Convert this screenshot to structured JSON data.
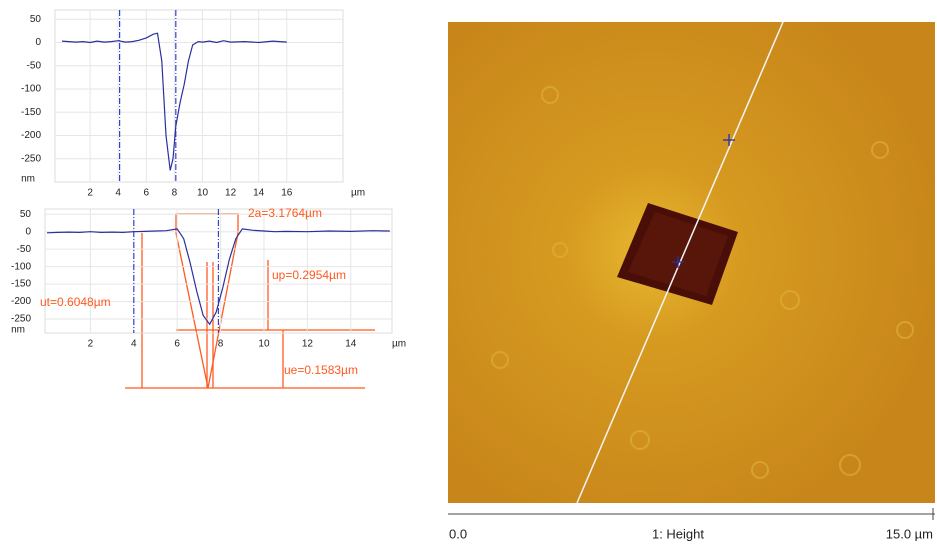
{
  "chart_data": [
    {
      "type": "line",
      "x_unit": "µm",
      "y_unit": "nm",
      "xlim": [
        0,
        20
      ],
      "ylim": [
        -300,
        70
      ],
      "xticks": [
        2,
        4,
        6,
        8,
        10,
        12,
        14,
        16
      ],
      "yticks": [
        50,
        0,
        -50,
        -100,
        -150,
        -200,
        -250
      ],
      "grid": true,
      "cursors": [
        4.1,
        8.1
      ],
      "cursor_color": "#3344cc",
      "series": [
        {
          "color": "#2b2f9e",
          "x": [
            0,
            0.5,
            1,
            1.5,
            2,
            2.5,
            3,
            3.5,
            4,
            4.5,
            5,
            5.5,
            6,
            6.5,
            6.8,
            7.1,
            7.4,
            7.7,
            7.9,
            8.1,
            8.4,
            8.7,
            9.0,
            9.3,
            9.7,
            10,
            10.5,
            11,
            11.5,
            12,
            13,
            14,
            15,
            16
          ],
          "values": [
            3,
            2,
            1,
            2,
            0,
            3,
            1,
            2,
            4,
            1,
            2,
            5,
            10,
            18,
            20,
            -40,
            -200,
            -275,
            -250,
            -180,
            -130,
            -90,
            -40,
            -5,
            2,
            1,
            3,
            0,
            4,
            1,
            2,
            0,
            3,
            1
          ]
        }
      ]
    },
    {
      "type": "line",
      "x_unit": "µm",
      "y_unit": "nm",
      "xlim": [
        0,
        15.9
      ],
      "ylim": [
        -290,
        65
      ],
      "xticks": [
        2,
        4,
        6,
        8,
        10,
        12,
        14
      ],
      "yticks": [
        50,
        0,
        -50,
        -100,
        -150,
        -200,
        -250
      ],
      "grid": true,
      "cursors": [
        4.0,
        7.9
      ],
      "cursor_color": "#3344cc",
      "series": [
        {
          "color": "#2b2f9e",
          "x": [
            0,
            0.5,
            1,
            1.5,
            2,
            2.5,
            3,
            3.5,
            4,
            4.5,
            5,
            5.5,
            6,
            6.3,
            6.6,
            6.9,
            7.2,
            7.5,
            7.8,
            8.1,
            8.4,
            8.7,
            9,
            9.5,
            10,
            10.5,
            11,
            12,
            13,
            14,
            15,
            15.8
          ],
          "values": [
            -3,
            -2,
            -1,
            -2,
            0,
            -2,
            -1,
            -2,
            0,
            1,
            2,
            3,
            8,
            -20,
            -90,
            -170,
            -240,
            -265,
            -230,
            -160,
            -80,
            -20,
            8,
            4,
            2,
            0,
            1,
            0,
            2,
            1,
            3,
            2
          ]
        }
      ],
      "annotations": [
        "2a=3.1764µm",
        "up=0.2954µm",
        "ut=0.6048µm",
        "ue=0.1583µm"
      ]
    }
  ],
  "image_scale": [
    "0.0",
    "1: Height",
    "15.0 µm"
  ]
}
